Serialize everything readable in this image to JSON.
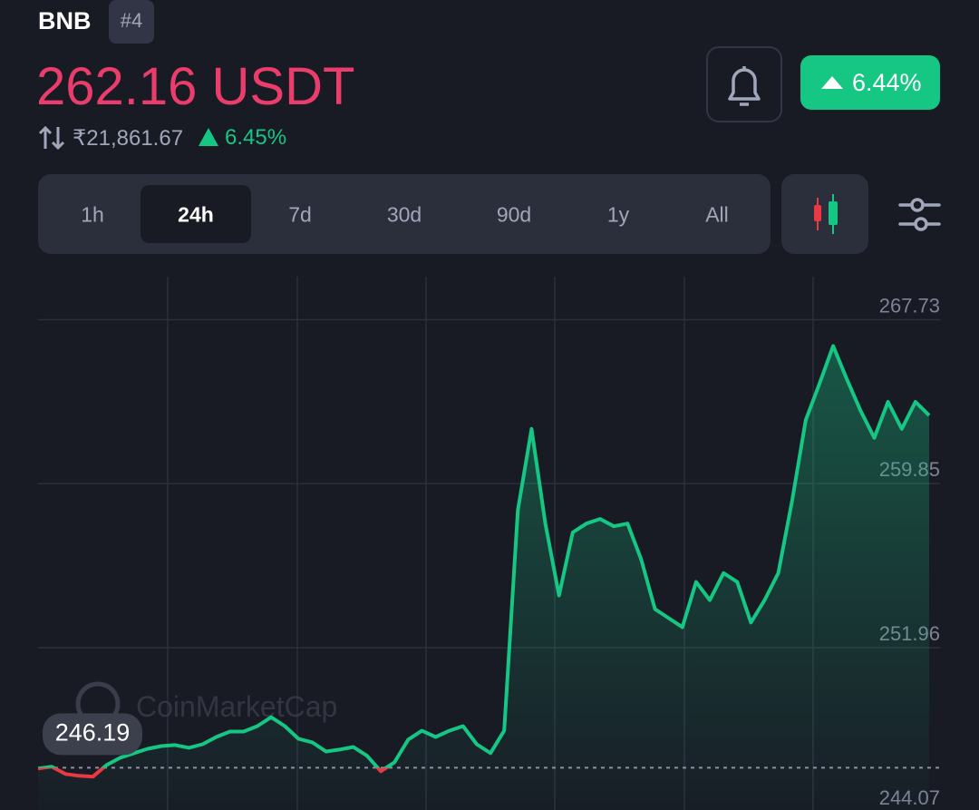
{
  "header": {
    "symbol": "BNB",
    "rank": "#4",
    "price": "262.16 USDT",
    "fiat_price": "₹21,861.67",
    "fiat_change": "6.45%",
    "change": "6.44%"
  },
  "tabs": [
    "1h",
    "24h",
    "7d",
    "30d",
    "90d",
    "1y",
    "All"
  ],
  "active_tab": 1,
  "chart_data": {
    "type": "line",
    "watermark": "CoinMarketCap",
    "values": [
      246.15,
      246.24,
      245.89,
      245.8,
      245.76,
      246.32,
      246.67,
      246.89,
      247.1,
      247.23,
      247.28,
      247.15,
      247.32,
      247.67,
      247.93,
      247.93,
      248.19,
      248.62,
      248.19,
      247.58,
      247.41,
      246.97,
      247.06,
      247.19,
      246.76,
      246.02,
      246.45,
      247.54,
      247.97,
      247.67,
      247.97,
      248.19,
      247.32,
      246.89,
      247.97,
      258.58,
      262.48,
      257.93,
      254.47,
      257.5,
      257.93,
      258.15,
      257.8,
      257.93,
      256.2,
      253.82,
      253.38,
      252.95,
      255.12,
      254.25,
      255.55,
      255.12,
      253.17,
      254.25,
      255.55,
      259.02,
      262.91,
      264.65,
      266.47,
      264.86,
      263.35,
      262.05,
      263.78,
      262.48,
      263.78,
      263.13
    ],
    "baseline": 246.19,
    "color": "#16c784",
    "down_color": "#ea3943",
    "ylim": [
      244.07,
      269.8
    ],
    "yticks": [
      244.07,
      251.96,
      259.85,
      267.73
    ],
    "grid": true
  }
}
